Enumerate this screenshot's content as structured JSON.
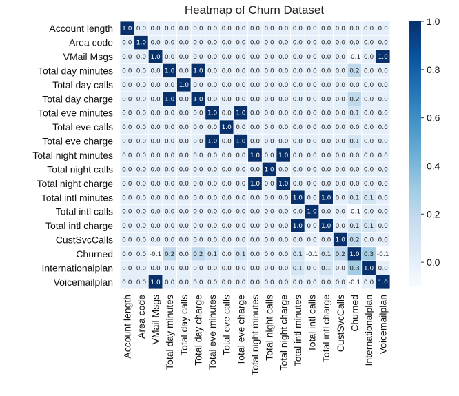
{
  "chart_data": {
    "type": "heatmap",
    "title": "Heatmap of Churn Dataset",
    "labels": [
      "Account length",
      "Area code",
      "VMail Msgs",
      "Total day minutes",
      "Total day calls",
      "Total day charge",
      "Total eve minutes",
      "Total eve calls",
      "Total eve charge",
      "Total night minutes",
      "Total night calls",
      "Total night charge",
      "Total intl minutes",
      "Total intl calls",
      "Total intl charge",
      "CustSvcCalls",
      "Churned",
      "Internationalplan",
      "Voicemailplan"
    ],
    "values": [
      [
        1.0,
        -0.0,
        -0.0,
        0.0,
        0.0,
        0.0,
        -0.0,
        0.0,
        -0.0,
        -0.0,
        -0.0,
        -0.0,
        0.0,
        0.0,
        0.0,
        -0.0,
        0.0,
        0.0,
        0.0
      ],
      [
        -0.0,
        1.0,
        -0.0,
        -0.0,
        -0.0,
        -0.0,
        0.0,
        -0.0,
        0.0,
        -0.0,
        0.0,
        -0.0,
        -0.0,
        -0.0,
        -0.0,
        0.0,
        0.0,
        0.0,
        0.0
      ],
      [
        -0.0,
        -0.0,
        1.0,
        0.0,
        -0.0,
        0.0,
        0.0,
        -0.0,
        0.0,
        0.0,
        0.0,
        0.0,
        0.0,
        0.0,
        0.0,
        -0.0,
        -0.1,
        0.0,
        1.0
      ],
      [
        0.0,
        -0.0,
        0.0,
        1.0,
        0.0,
        1.0,
        0.0,
        0.0,
        0.0,
        0.0,
        0.0,
        0.0,
        -0.0,
        0.0,
        -0.0,
        -0.0,
        0.2,
        0.0,
        0.0
      ],
      [
        0.0,
        -0.0,
        -0.0,
        0.0,
        1.0,
        0.0,
        -0.0,
        0.0,
        -0.0,
        0.0,
        -0.0,
        0.0,
        0.0,
        0.0,
        0.0,
        -0.0,
        0.0,
        0.0,
        -0.0
      ],
      [
        0.0,
        -0.0,
        0.0,
        1.0,
        0.0,
        1.0,
        0.0,
        0.0,
        0.0,
        0.0,
        0.0,
        0.0,
        -0.0,
        0.0,
        -0.0,
        -0.0,
        0.2,
        0.0,
        0.0
      ],
      [
        -0.0,
        0.0,
        0.0,
        0.0,
        -0.0,
        0.0,
        1.0,
        0.0,
        1.0,
        -0.0,
        0.0,
        -0.0,
        -0.0,
        0.0,
        -0.0,
        -0.0,
        0.1,
        0.0,
        0.0
      ],
      [
        0.0,
        -0.0,
        -0.0,
        0.0,
        0.0,
        0.0,
        0.0,
        1.0,
        0.0,
        -0.0,
        0.0,
        -0.0,
        0.0,
        0.0,
        0.0,
        0.0,
        0.0,
        0.0,
        -0.0
      ],
      [
        -0.0,
        0.0,
        0.0,
        0.0,
        -0.0,
        0.0,
        1.0,
        0.0,
        1.0,
        -0.0,
        0.0,
        -0.0,
        -0.0,
        0.0,
        -0.0,
        -0.0,
        0.1,
        0.0,
        0.0
      ],
      [
        -0.0,
        -0.0,
        0.0,
        0.0,
        0.0,
        0.0,
        -0.0,
        -0.0,
        -0.0,
        1.0,
        0.0,
        1.0,
        -0.0,
        -0.0,
        -0.0,
        -0.0,
        0.0,
        -0.0,
        0.0
      ],
      [
        -0.0,
        0.0,
        0.0,
        0.0,
        -0.0,
        0.0,
        0.0,
        0.0,
        0.0,
        0.0,
        1.0,
        0.0,
        -0.0,
        0.0,
        -0.0,
        -0.0,
        0.0,
        0.0,
        0.0
      ],
      [
        -0.0,
        -0.0,
        0.0,
        0.0,
        0.0,
        0.0,
        -0.0,
        -0.0,
        -0.0,
        1.0,
        0.0,
        1.0,
        -0.0,
        -0.0,
        -0.0,
        -0.0,
        0.0,
        -0.0,
        0.0
      ],
      [
        0.0,
        -0.0,
        0.0,
        -0.0,
        0.0,
        -0.0,
        -0.0,
        0.0,
        -0.0,
        -0.0,
        -0.0,
        -0.0,
        1.0,
        0.0,
        1.0,
        -0.0,
        0.1,
        0.1,
        -0.0
      ],
      [
        0.0,
        -0.0,
        0.0,
        0.0,
        0.0,
        0.0,
        0.0,
        0.0,
        0.0,
        -0.0,
        0.0,
        -0.0,
        0.0,
        1.0,
        0.0,
        -0.0,
        -0.1,
        0.0,
        0.0
      ],
      [
        0.0,
        -0.0,
        0.0,
        -0.0,
        0.0,
        -0.0,
        -0.0,
        0.0,
        -0.0,
        -0.0,
        -0.0,
        -0.0,
        1.0,
        0.0,
        1.0,
        -0.0,
        0.1,
        0.1,
        -0.0
      ],
      [
        -0.0,
        0.0,
        -0.0,
        -0.0,
        -0.0,
        -0.0,
        -0.0,
        0.0,
        -0.0,
        -0.0,
        -0.0,
        -0.0,
        -0.0,
        -0.0,
        -0.0,
        1.0,
        0.2,
        -0.0,
        -0.0
      ],
      [
        0.0,
        0.0,
        -0.1,
        0.2,
        0.0,
        0.2,
        0.1,
        0.0,
        0.1,
        0.0,
        0.0,
        0.0,
        0.1,
        -0.1,
        0.1,
        0.2,
        1.0,
        0.3,
        -0.1
      ],
      [
        0.0,
        0.0,
        0.0,
        0.0,
        0.0,
        0.0,
        0.0,
        0.0,
        0.0,
        -0.0,
        0.0,
        -0.0,
        0.1,
        0.0,
        0.1,
        -0.0,
        0.3,
        1.0,
        0.0
      ],
      [
        0.0,
        0.0,
        1.0,
        0.0,
        -0.0,
        0.0,
        0.0,
        -0.0,
        0.0,
        0.0,
        0.0,
        0.0,
        -0.0,
        0.0,
        -0.0,
        -0.0,
        -0.1,
        0.0,
        1.0
      ]
    ],
    "colorbar": {
      "vmin": -0.1,
      "vmax": 1.0,
      "ticks": [
        0.0,
        0.2,
        0.4,
        0.6,
        0.8,
        1.0
      ],
      "tick_labels": [
        "0.0",
        "0.2",
        "0.4",
        "0.6",
        "0.8",
        "1.0"
      ],
      "colormap": "Blues",
      "colormap_stops": [
        "#f7fbff",
        "#deebf7",
        "#c6dbef",
        "#9ecae1",
        "#6baed6",
        "#4292c6",
        "#2171b5",
        "#08519c",
        "#08306b"
      ]
    },
    "annotations": "each cell shows its value with one decimal",
    "cell_gridlines": true,
    "gridline_color": "#ffffff"
  }
}
